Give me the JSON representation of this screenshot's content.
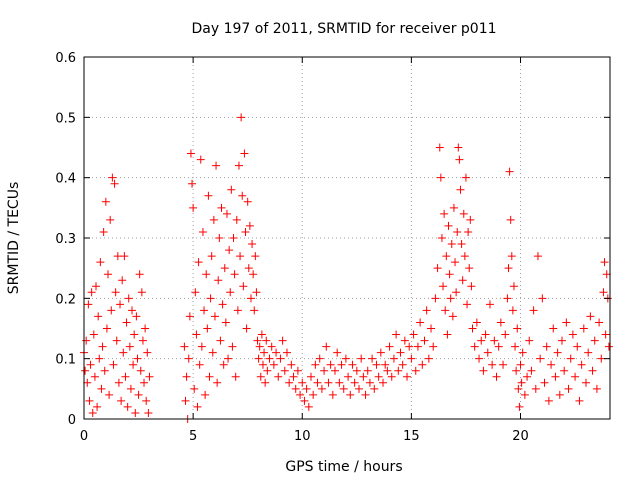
{
  "chart_data": {
    "type": "scatter",
    "title": "Day 197 of 2011, SRMTID for receiver p011",
    "xlabel": "GPS time / hours",
    "ylabel": "SRMTID / TECUs",
    "xlim": [
      0,
      24.1
    ],
    "ylim": [
      0,
      0.6
    ],
    "x_ticks": [
      0,
      5,
      10,
      15,
      20
    ],
    "y_ticks": [
      0,
      0.1,
      0.2,
      0.3,
      0.4,
      0.5,
      0.6
    ],
    "x_tick_labels": [
      "0",
      "5",
      "10",
      "15",
      "20"
    ],
    "y_tick_labels": [
      "0",
      "0.1",
      "0.2",
      "0.3",
      "0.4",
      "0.5",
      "0.6"
    ],
    "grid": true,
    "marker": "+",
    "series_color": "#ff0000",
    "series": [
      {
        "name": "SRMTID",
        "points": [
          [
            0.0,
            0.11
          ],
          [
            0.05,
            0.08
          ],
          [
            0.1,
            0.13
          ],
          [
            0.15,
            0.06
          ],
          [
            0.2,
            0.19
          ],
          [
            0.25,
            0.03
          ],
          [
            0.3,
            0.09
          ],
          [
            0.35,
            0.21
          ],
          [
            0.4,
            0.01
          ],
          [
            0.45,
            0.14
          ],
          [
            0.5,
            0.07
          ],
          [
            0.55,
            0.22
          ],
          [
            0.6,
            0.02
          ],
          [
            0.65,
            0.17
          ],
          [
            0.7,
            0.1
          ],
          [
            0.75,
            0.26
          ],
          [
            0.8,
            0.05
          ],
          [
            0.85,
            0.12
          ],
          [
            0.9,
            0.31
          ],
          [
            0.95,
            0.08
          ],
          [
            1.0,
            0.36
          ],
          [
            1.05,
            0.15
          ],
          [
            1.1,
            0.24
          ],
          [
            1.15,
            0.04
          ],
          [
            1.2,
            0.33
          ],
          [
            1.25,
            0.18
          ],
          [
            1.3,
            0.4
          ],
          [
            1.35,
            0.09
          ],
          [
            1.4,
            0.39
          ],
          [
            1.45,
            0.21
          ],
          [
            1.5,
            0.13
          ],
          [
            1.55,
            0.27
          ],
          [
            1.6,
            0.06
          ],
          [
            1.65,
            0.19
          ],
          [
            1.7,
            0.03
          ],
          [
            1.75,
            0.23
          ],
          [
            1.8,
            0.11
          ],
          [
            1.85,
            0.27
          ],
          [
            1.9,
            0.07
          ],
          [
            1.95,
            0.16
          ],
          [
            2.0,
            0.02
          ],
          [
            2.05,
            0.2
          ],
          [
            2.1,
            0.12
          ],
          [
            2.15,
            0.05
          ],
          [
            2.2,
            0.18
          ],
          [
            2.25,
            0.09
          ],
          [
            2.3,
            0.14
          ],
          [
            2.35,
            0.01
          ],
          [
            2.4,
            0.17
          ],
          [
            2.45,
            0.1
          ],
          [
            2.5,
            0.04
          ],
          [
            2.55,
            0.24
          ],
          [
            2.6,
            0.08
          ],
          [
            2.65,
            0.21
          ],
          [
            2.7,
            0.13
          ],
          [
            2.75,
            0.06
          ],
          [
            2.8,
            0.15
          ],
          [
            2.85,
            0.03
          ],
          [
            2.9,
            0.11
          ],
          [
            2.95,
            0.01
          ],
          [
            3.0,
            0.07
          ],
          [
            4.6,
            0.12
          ],
          [
            4.65,
            0.03
          ],
          [
            4.7,
            0.07
          ],
          [
            4.75,
            0.0
          ],
          [
            4.8,
            0.1
          ],
          [
            4.85,
            0.17
          ],
          [
            4.9,
            0.44
          ],
          [
            4.95,
            0.39
          ],
          [
            5.0,
            0.35
          ],
          [
            5.05,
            0.05
          ],
          [
            5.1,
            0.21
          ],
          [
            5.15,
            0.14
          ],
          [
            5.2,
            0.02
          ],
          [
            5.25,
            0.26
          ],
          [
            5.3,
            0.09
          ],
          [
            5.35,
            0.43
          ],
          [
            5.4,
            0.12
          ],
          [
            5.45,
            0.31
          ],
          [
            5.5,
            0.18
          ],
          [
            5.55,
            0.04
          ],
          [
            5.6,
            0.24
          ],
          [
            5.65,
            0.15
          ],
          [
            5.7,
            0.37
          ],
          [
            5.75,
            0.07
          ],
          [
            5.8,
            0.2
          ],
          [
            5.85,
            0.27
          ],
          [
            5.9,
            0.11
          ],
          [
            5.95,
            0.33
          ],
          [
            6.0,
            0.17
          ],
          [
            6.05,
            0.42
          ],
          [
            6.1,
            0.06
          ],
          [
            6.15,
            0.23
          ],
          [
            6.2,
            0.3
          ],
          [
            6.25,
            0.13
          ],
          [
            6.3,
            0.35
          ],
          [
            6.35,
            0.19
          ],
          [
            6.4,
            0.09
          ],
          [
            6.45,
            0.25
          ],
          [
            6.5,
            0.16
          ],
          [
            6.55,
            0.34
          ],
          [
            6.6,
            0.1
          ],
          [
            6.65,
            0.28
          ],
          [
            6.7,
            0.21
          ],
          [
            6.75,
            0.38
          ],
          [
            6.8,
            0.12
          ],
          [
            6.85,
            0.3
          ],
          [
            6.9,
            0.24
          ],
          [
            6.95,
            0.07
          ],
          [
            7.0,
            0.33
          ],
          [
            7.05,
            0.18
          ],
          [
            7.1,
            0.42
          ],
          [
            7.15,
            0.27
          ],
          [
            7.2,
            0.5
          ],
          [
            7.25,
            0.37
          ],
          [
            7.3,
            0.22
          ],
          [
            7.35,
            0.44
          ],
          [
            7.4,
            0.31
          ],
          [
            7.45,
            0.15
          ],
          [
            7.5,
            0.36
          ],
          [
            7.55,
            0.25
          ],
          [
            7.6,
            0.32
          ],
          [
            7.65,
            0.2
          ],
          [
            7.7,
            0.29
          ],
          [
            7.75,
            0.24
          ],
          [
            7.8,
            0.18
          ],
          [
            7.85,
            0.27
          ],
          [
            7.9,
            0.21
          ],
          [
            7.95,
            0.13
          ],
          [
            8.0,
            0.1
          ],
          [
            8.05,
            0.12
          ],
          [
            8.1,
            0.07
          ],
          [
            8.15,
            0.14
          ],
          [
            8.2,
            0.09
          ],
          [
            8.25,
            0.11
          ],
          [
            8.3,
            0.06
          ],
          [
            8.35,
            0.13
          ],
          [
            8.4,
            0.08
          ],
          [
            8.5,
            0.1
          ],
          [
            8.6,
            0.12
          ],
          [
            8.7,
            0.09
          ],
          [
            8.8,
            0.11
          ],
          [
            8.9,
            0.07
          ],
          [
            9.0,
            0.1
          ],
          [
            9.1,
            0.13
          ],
          [
            9.2,
            0.08
          ],
          [
            9.3,
            0.11
          ],
          [
            9.4,
            0.06
          ],
          [
            9.5,
            0.09
          ],
          [
            9.6,
            0.07
          ],
          [
            9.7,
            0.05
          ],
          [
            9.8,
            0.08
          ],
          [
            9.9,
            0.04
          ],
          [
            10.0,
            0.06
          ],
          [
            10.1,
            0.03
          ],
          [
            10.2,
            0.05
          ],
          [
            10.3,
            0.02
          ],
          [
            10.4,
            0.07
          ],
          [
            10.5,
            0.04
          ],
          [
            10.6,
            0.09
          ],
          [
            10.7,
            0.06
          ],
          [
            10.8,
            0.1
          ],
          [
            10.9,
            0.05
          ],
          [
            11.0,
            0.08
          ],
          [
            11.1,
            0.12
          ],
          [
            11.2,
            0.06
          ],
          [
            11.3,
            0.09
          ],
          [
            11.4,
            0.04
          ],
          [
            11.5,
            0.08
          ],
          [
            11.6,
            0.11
          ],
          [
            11.7,
            0.06
          ],
          [
            11.8,
            0.09
          ],
          [
            11.9,
            0.05
          ],
          [
            12.0,
            0.1
          ],
          [
            12.1,
            0.07
          ],
          [
            12.2,
            0.04
          ],
          [
            12.3,
            0.09
          ],
          [
            12.4,
            0.06
          ],
          [
            12.5,
            0.08
          ],
          [
            12.6,
            0.05
          ],
          [
            12.7,
            0.1
          ],
          [
            12.8,
            0.07
          ],
          [
            12.9,
            0.04
          ],
          [
            13.0,
            0.08
          ],
          [
            13.1,
            0.06
          ],
          [
            13.2,
            0.1
          ],
          [
            13.3,
            0.05
          ],
          [
            13.4,
            0.09
          ],
          [
            13.5,
            0.07
          ],
          [
            13.6,
            0.11
          ],
          [
            13.7,
            0.06
          ],
          [
            13.8,
            0.09
          ],
          [
            13.9,
            0.08
          ],
          [
            14.0,
            0.12
          ],
          [
            14.1,
            0.07
          ],
          [
            14.2,
            0.1
          ],
          [
            14.3,
            0.14
          ],
          [
            14.4,
            0.08
          ],
          [
            14.5,
            0.11
          ],
          [
            14.6,
            0.09
          ],
          [
            14.7,
            0.13
          ],
          [
            14.8,
            0.07
          ],
          [
            14.9,
            0.12
          ],
          [
            15.0,
            0.1
          ],
          [
            15.1,
            0.14
          ],
          [
            15.2,
            0.08
          ],
          [
            15.3,
            0.12
          ],
          [
            15.4,
            0.16
          ],
          [
            15.5,
            0.09
          ],
          [
            15.6,
            0.13
          ],
          [
            15.7,
            0.18
          ],
          [
            15.8,
            0.1
          ],
          [
            15.9,
            0.15
          ],
          [
            16.0,
            0.12
          ],
          [
            16.1,
            0.2
          ],
          [
            16.2,
            0.25
          ],
          [
            16.3,
            0.45
          ],
          [
            16.35,
            0.4
          ],
          [
            16.4,
            0.3
          ],
          [
            16.45,
            0.22
          ],
          [
            16.5,
            0.34
          ],
          [
            16.55,
            0.18
          ],
          [
            16.6,
            0.27
          ],
          [
            16.65,
            0.14
          ],
          [
            16.7,
            0.32
          ],
          [
            16.75,
            0.24
          ],
          [
            16.8,
            0.2
          ],
          [
            16.85,
            0.29
          ],
          [
            16.9,
            0.17
          ],
          [
            16.95,
            0.35
          ],
          [
            17.0,
            0.26
          ],
          [
            17.05,
            0.21
          ],
          [
            17.1,
            0.31
          ],
          [
            17.15,
            0.45
          ],
          [
            17.2,
            0.43
          ],
          [
            17.25,
            0.38
          ],
          [
            17.3,
            0.29
          ],
          [
            17.35,
            0.23
          ],
          [
            17.4,
            0.34
          ],
          [
            17.45,
            0.27
          ],
          [
            17.5,
            0.4
          ],
          [
            17.55,
            0.19
          ],
          [
            17.6,
            0.31
          ],
          [
            17.65,
            0.25
          ],
          [
            17.7,
            0.33
          ],
          [
            17.75,
            0.22
          ],
          [
            17.8,
            0.15
          ],
          [
            17.9,
            0.12
          ],
          [
            18.0,
            0.16
          ],
          [
            18.1,
            0.1
          ],
          [
            18.2,
            0.13
          ],
          [
            18.3,
            0.08
          ],
          [
            18.4,
            0.14
          ],
          [
            18.5,
            0.11
          ],
          [
            18.6,
            0.19
          ],
          [
            18.7,
            0.09
          ],
          [
            18.8,
            0.13
          ],
          [
            18.9,
            0.07
          ],
          [
            19.0,
            0.12
          ],
          [
            19.1,
            0.16
          ],
          [
            19.2,
            0.09
          ],
          [
            19.3,
            0.14
          ],
          [
            19.4,
            0.2
          ],
          [
            19.45,
            0.25
          ],
          [
            19.5,
            0.41
          ],
          [
            19.55,
            0.33
          ],
          [
            19.6,
            0.27
          ],
          [
            19.65,
            0.18
          ],
          [
            19.7,
            0.22
          ],
          [
            19.75,
            0.12
          ],
          [
            19.8,
            0.08
          ],
          [
            19.85,
            0.15
          ],
          [
            19.9,
            0.05
          ],
          [
            19.95,
            0.02
          ],
          [
            20.0,
            0.09
          ],
          [
            20.05,
            0.06
          ],
          [
            20.1,
            0.11
          ],
          [
            20.2,
            0.04
          ],
          [
            20.3,
            0.07
          ],
          [
            20.4,
            0.13
          ],
          [
            20.5,
            0.08
          ],
          [
            20.6,
            0.18
          ],
          [
            20.7,
            0.05
          ],
          [
            20.8,
            0.27
          ],
          [
            20.9,
            0.1
          ],
          [
            21.0,
            0.2
          ],
          [
            21.1,
            0.06
          ],
          [
            21.2,
            0.12
          ],
          [
            21.3,
            0.03
          ],
          [
            21.4,
            0.09
          ],
          [
            21.5,
            0.15
          ],
          [
            21.6,
            0.07
          ],
          [
            21.7,
            0.11
          ],
          [
            21.8,
            0.04
          ],
          [
            21.9,
            0.13
          ],
          [
            22.0,
            0.08
          ],
          [
            22.1,
            0.16
          ],
          [
            22.2,
            0.05
          ],
          [
            22.3,
            0.1
          ],
          [
            22.4,
            0.14
          ],
          [
            22.5,
            0.07
          ],
          [
            22.6,
            0.12
          ],
          [
            22.7,
            0.03
          ],
          [
            22.8,
            0.09
          ],
          [
            22.9,
            0.15
          ],
          [
            23.0,
            0.06
          ],
          [
            23.1,
            0.11
          ],
          [
            23.2,
            0.17
          ],
          [
            23.3,
            0.08
          ],
          [
            23.4,
            0.13
          ],
          [
            23.5,
            0.05
          ],
          [
            23.6,
            0.16
          ],
          [
            23.7,
            0.1
          ],
          [
            23.8,
            0.21
          ],
          [
            23.85,
            0.26
          ],
          [
            23.9,
            0.14
          ],
          [
            23.95,
            0.24
          ],
          [
            24.0,
            0.2
          ],
          [
            24.05,
            0.12
          ]
        ]
      }
    ]
  }
}
